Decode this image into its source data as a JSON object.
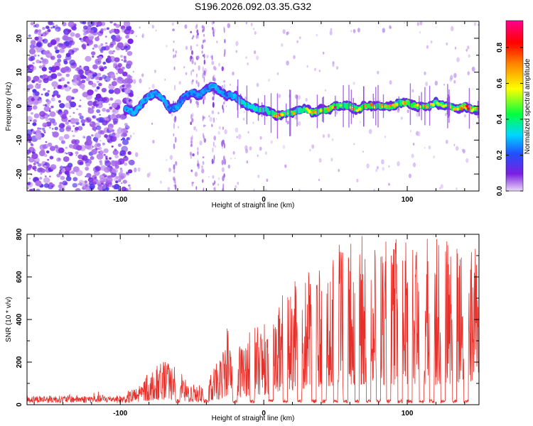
{
  "title": "S196.2026.092.03.35.G32",
  "chart_data": [
    {
      "type": "heatmap",
      "name": "spectrogram",
      "xlabel": "Height of straight line (km)",
      "ylabel": "Frequency (Hz)",
      "xlim": [
        -165,
        150
      ],
      "ylim": [
        -25,
        25
      ],
      "xticks": [
        -100,
        0,
        100
      ],
      "yticks": [
        -20,
        -10,
        0,
        10,
        20
      ],
      "colorbar": {
        "label": "Normalized spectral amplitude",
        "range": [
          0,
          0.95
        ],
        "ticks": [
          "0.0",
          "0.2",
          "0.4",
          "0.6",
          "0.8"
        ],
        "tick_values": [
          0,
          0.2,
          0.4,
          0.6,
          0.8
        ],
        "colors": [
          "#e9d8f8",
          "#7b1fe0",
          "#2050ff",
          "#00d8ff",
          "#00ff40",
          "#ffff00",
          "#ff8000",
          "#ff0000",
          "#ff0090"
        ]
      },
      "ridge": {
        "x": [
          -95,
          -90,
          -85,
          -80,
          -75,
          -70,
          -65,
          -60,
          -55,
          -50,
          -45,
          -40,
          -35,
          -30,
          -25,
          -20,
          -15,
          -10,
          -5,
          0,
          5,
          10,
          15,
          20,
          25,
          30,
          35,
          40,
          45,
          50,
          55,
          60,
          65,
          70,
          75,
          80,
          85,
          90,
          95,
          100,
          105,
          110,
          115,
          120,
          125,
          130,
          135,
          140,
          145
        ],
        "freq": [
          -1,
          -2,
          1,
          3,
          4,
          2,
          -1,
          0,
          3,
          4,
          3,
          5,
          6,
          4,
          3,
          3,
          1,
          0,
          -1,
          -1,
          -2,
          -3,
          -2,
          -2,
          -1,
          -1,
          -2,
          -1,
          -1,
          0,
          0,
          0,
          -1,
          0,
          0,
          0,
          0,
          0,
          1,
          1,
          0,
          0,
          0,
          1,
          0,
          0,
          -1,
          0,
          -1
        ],
        "amplitude": [
          0.3,
          0.35,
          0.32,
          0.3,
          0.28,
          0.3,
          0.25,
          0.28,
          0.22,
          0.25,
          0.28,
          0.2,
          0.35,
          0.3,
          0.2,
          0.35,
          0.4,
          0.45,
          0.4,
          0.45,
          0.5,
          0.9,
          0.6,
          0.7,
          0.55,
          0.65,
          0.75,
          0.6,
          0.7,
          0.9,
          0.6,
          0.7,
          0.65,
          0.75,
          0.85,
          0.6,
          0.8,
          0.7,
          0.6,
          0.85,
          0.8,
          0.75,
          0.7,
          0.6,
          0.7,
          0.75,
          0.65,
          0.9,
          0.7
        ]
      }
    },
    {
      "type": "line",
      "name": "snr",
      "xlabel": "Height of straight line (km)",
      "ylabel": "SNR (10 * v/v)",
      "xlim": [
        -165,
        150
      ],
      "ylim": [
        0,
        800
      ],
      "xticks": [
        -100,
        0,
        100
      ],
      "yticks": [
        0,
        200,
        400,
        600,
        800
      ],
      "color": "#e8302a",
      "envelope": {
        "x": [
          -165,
          -140,
          -120,
          -100,
          -90,
          -80,
          -75,
          -70,
          -65,
          -60,
          -55,
          -50,
          -45,
          -40,
          -35,
          -30,
          -25,
          -20,
          -15,
          -10,
          -5,
          0,
          5,
          10,
          15,
          20,
          25,
          30,
          35,
          40,
          45,
          50,
          55,
          60,
          65,
          70,
          75,
          80,
          85,
          90,
          95,
          100,
          105,
          110,
          115,
          120,
          125,
          130,
          135,
          140,
          145,
          150
        ],
        "y": [
          45,
          50,
          45,
          50,
          80,
          150,
          180,
          200,
          190,
          170,
          120,
          100,
          90,
          110,
          170,
          220,
          390,
          260,
          300,
          350,
          400,
          380,
          430,
          480,
          520,
          560,
          600,
          630,
          680,
          700,
          720,
          730,
          760,
          780,
          770,
          790,
          800,
          790,
          780,
          770,
          780,
          790,
          800,
          800,
          780,
          770,
          790,
          780,
          760,
          780,
          770,
          790
        ]
      },
      "notches_x": [
        -60,
        -40,
        -20,
        -8,
        5,
        15,
        25,
        35,
        42,
        50,
        57,
        65,
        73,
        80,
        87,
        95,
        102,
        110,
        117,
        125,
        133,
        141
      ]
    }
  ]
}
